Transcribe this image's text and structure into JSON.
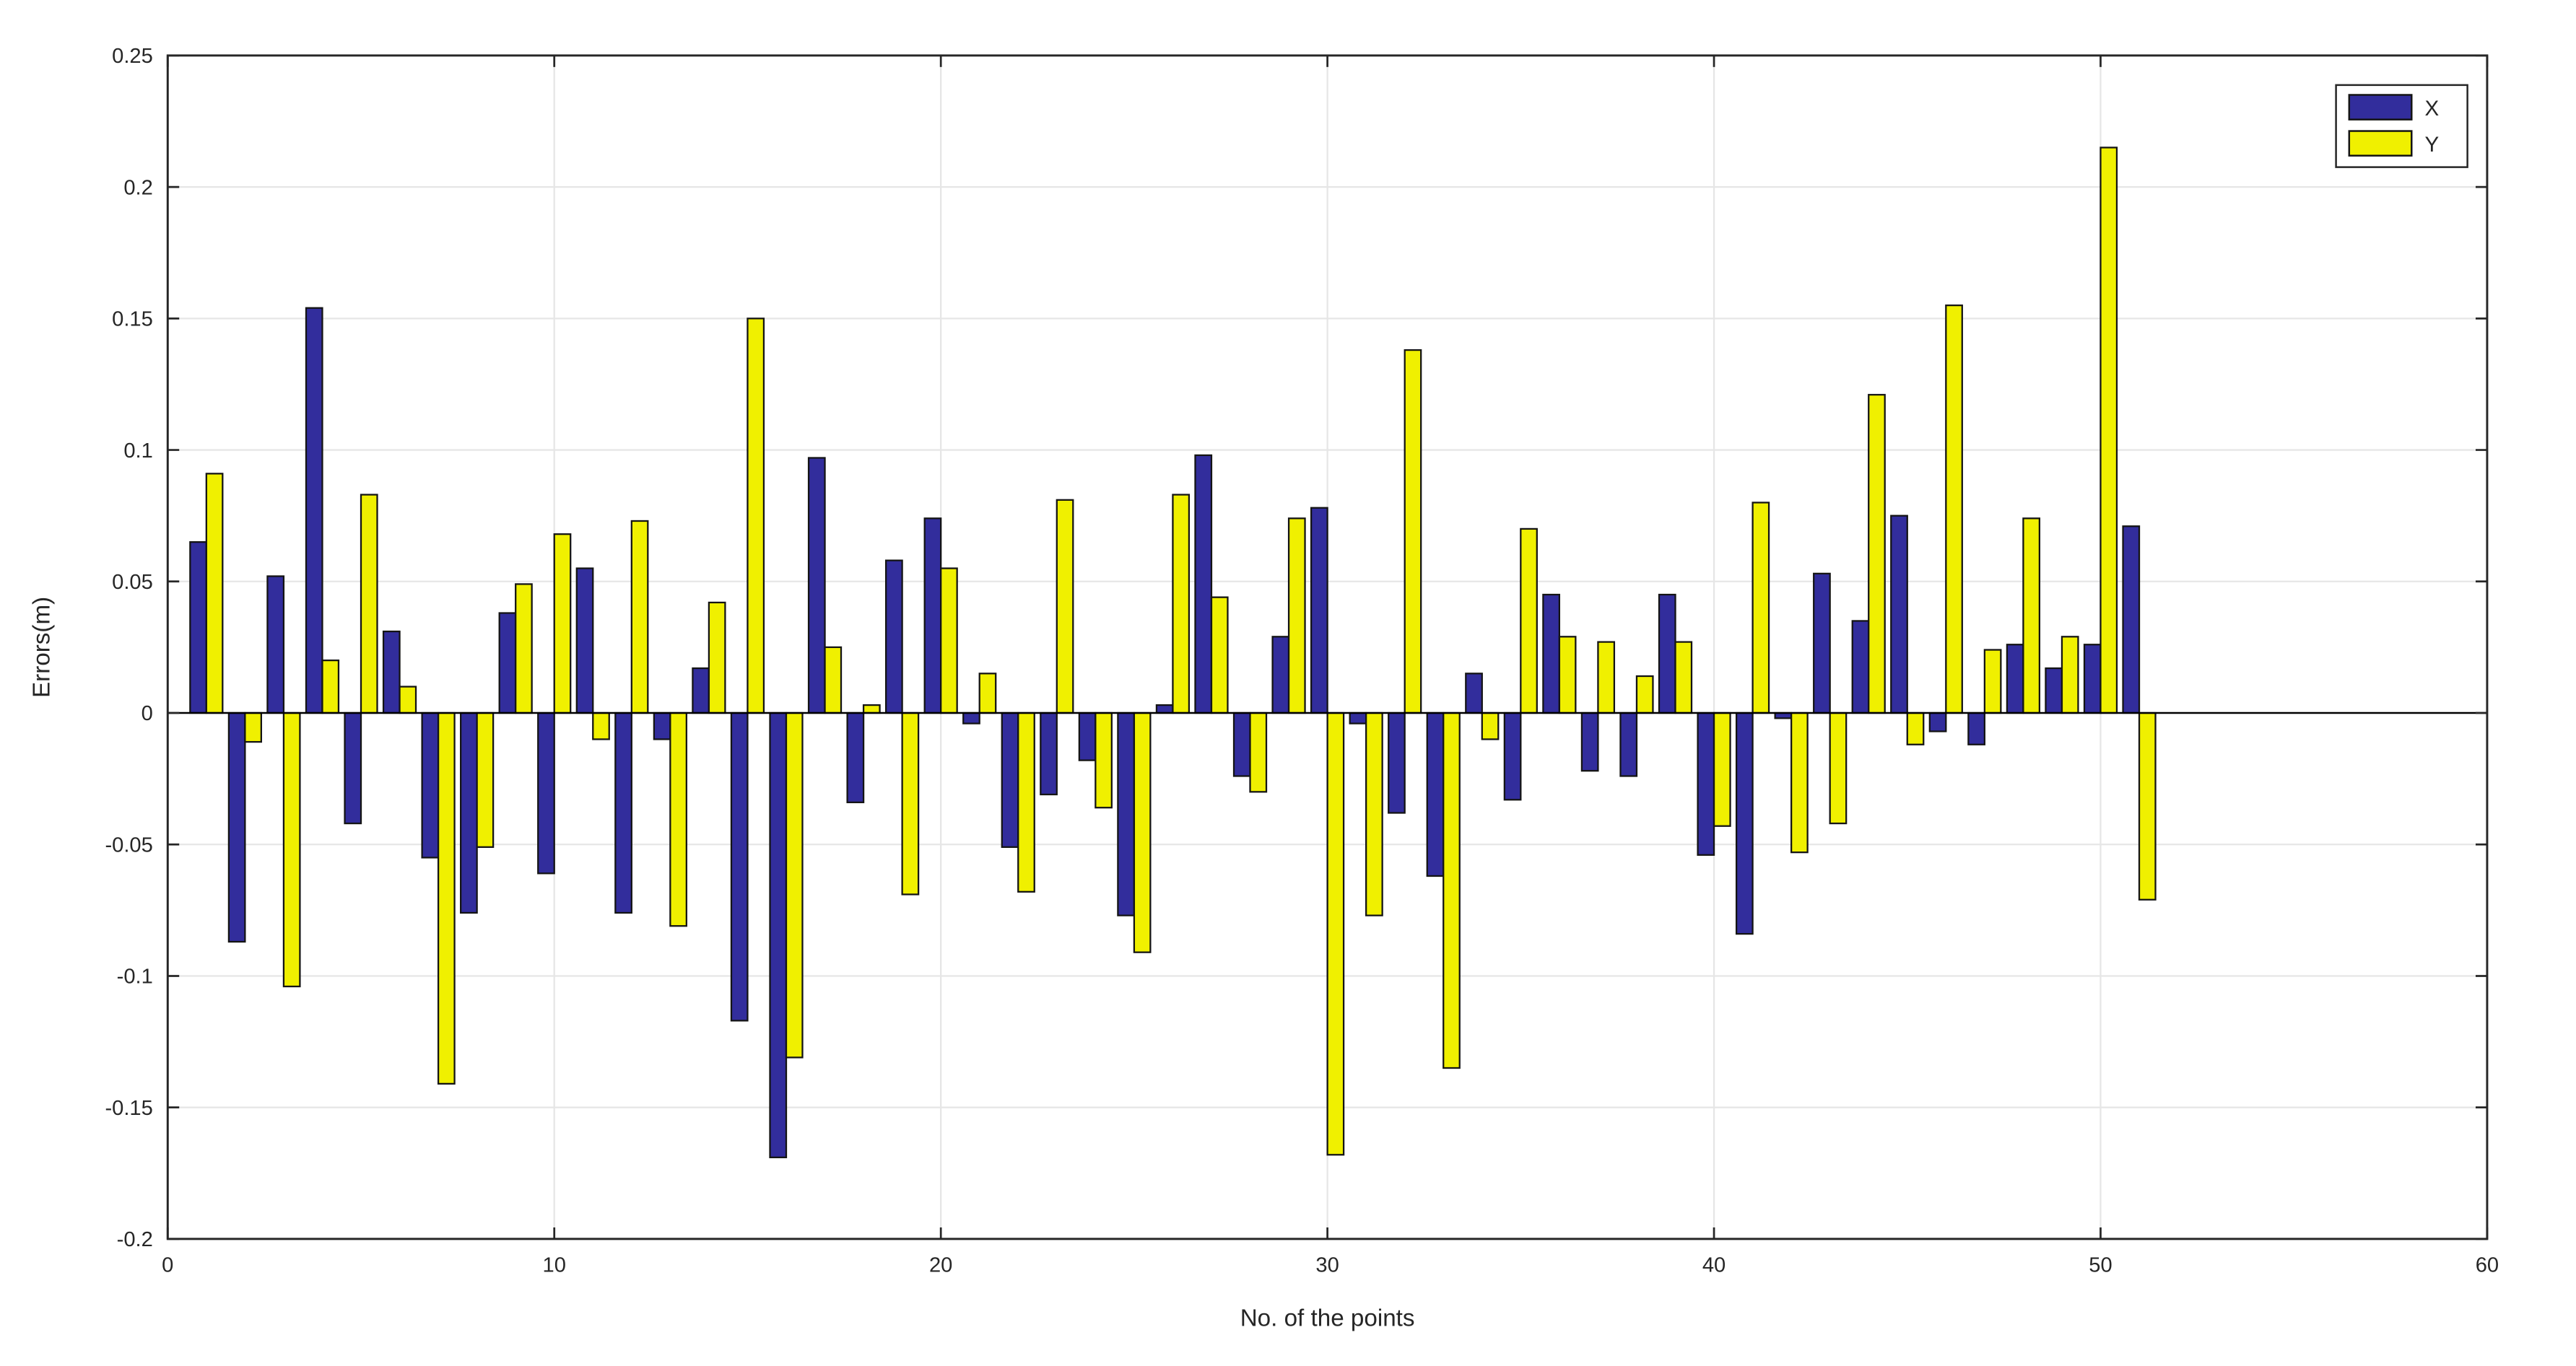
{
  "figure": {
    "background": "#ffffff",
    "plot_border_color": "#262626",
    "grid_color": "#e6e6e6",
    "zero_line_color": "#000000",
    "tick_text_color": "#404040"
  },
  "chart_data": {
    "type": "bar",
    "title": "",
    "xlabel": "No. of the points",
    "ylabel": "Errors(m)",
    "xlim": [
      0,
      60
    ],
    "ylim": [
      -0.2,
      0.25
    ],
    "grid": true,
    "legend_position": "top-right",
    "x_ticks": [
      0,
      10,
      20,
      30,
      40,
      50,
      60
    ],
    "y_ticks": [
      -0.2,
      -0.15,
      -0.1,
      -0.05,
      0,
      0.05,
      0.1,
      0.15,
      0.2,
      0.25
    ],
    "y_tick_labels": [
      "-0.2",
      "-0.15",
      "-0.1",
      "-0.05",
      "0",
      "0.05",
      "0.1",
      "0.15",
      "0.2",
      "0.25"
    ],
    "x": [
      1,
      2,
      3,
      4,
      5,
      6,
      7,
      8,
      9,
      10,
      11,
      12,
      13,
      14,
      15,
      16,
      17,
      18,
      19,
      20,
      21,
      22,
      23,
      24,
      25,
      26,
      27,
      28,
      29,
      30,
      31,
      32,
      33,
      34,
      35,
      36,
      37,
      38,
      39,
      40,
      41,
      42,
      43,
      44,
      45,
      46,
      47,
      48,
      49,
      50,
      51
    ],
    "series": [
      {
        "name": "X",
        "color": "#322d9c",
        "edge_color": "#141414",
        "values": [
          0.065,
          -0.087,
          0.052,
          0.154,
          -0.042,
          0.031,
          -0.055,
          -0.076,
          0.038,
          -0.061,
          0.055,
          -0.076,
          -0.01,
          0.017,
          -0.117,
          -0.169,
          0.097,
          -0.034,
          0.058,
          0.074,
          -0.004,
          -0.051,
          -0.031,
          -0.018,
          -0.077,
          0.003,
          0.098,
          -0.024,
          0.029,
          0.078,
          -0.004,
          -0.038,
          -0.062,
          0.015,
          -0.033,
          0.045,
          -0.022,
          -0.024,
          0.045,
          -0.054,
          -0.084,
          -0.002,
          0.053,
          0.035,
          0.075,
          -0.007,
          -0.012,
          0.026,
          0.017,
          0.026,
          0.071
        ]
      },
      {
        "name": "Y",
        "color": "#f0f000",
        "edge_color": "#141414",
        "values": [
          0.091,
          -0.011,
          -0.104,
          0.02,
          0.083,
          0.01,
          -0.141,
          -0.051,
          0.049,
          0.068,
          -0.01,
          0.073,
          -0.081,
          0.042,
          0.15,
          -0.131,
          0.025,
          0.003,
          -0.069,
          0.055,
          0.015,
          -0.068,
          0.081,
          -0.036,
          -0.091,
          0.083,
          0.044,
          -0.03,
          0.074,
          -0.168,
          -0.077,
          0.138,
          -0.135,
          -0.01,
          0.07,
          0.029,
          0.027,
          0.014,
          0.027,
          -0.043,
          0.08,
          -0.053,
          -0.042,
          0.121,
          -0.012,
          0.155,
          0.024,
          0.074,
          0.029,
          0.215,
          -0.071
        ]
      }
    ]
  }
}
